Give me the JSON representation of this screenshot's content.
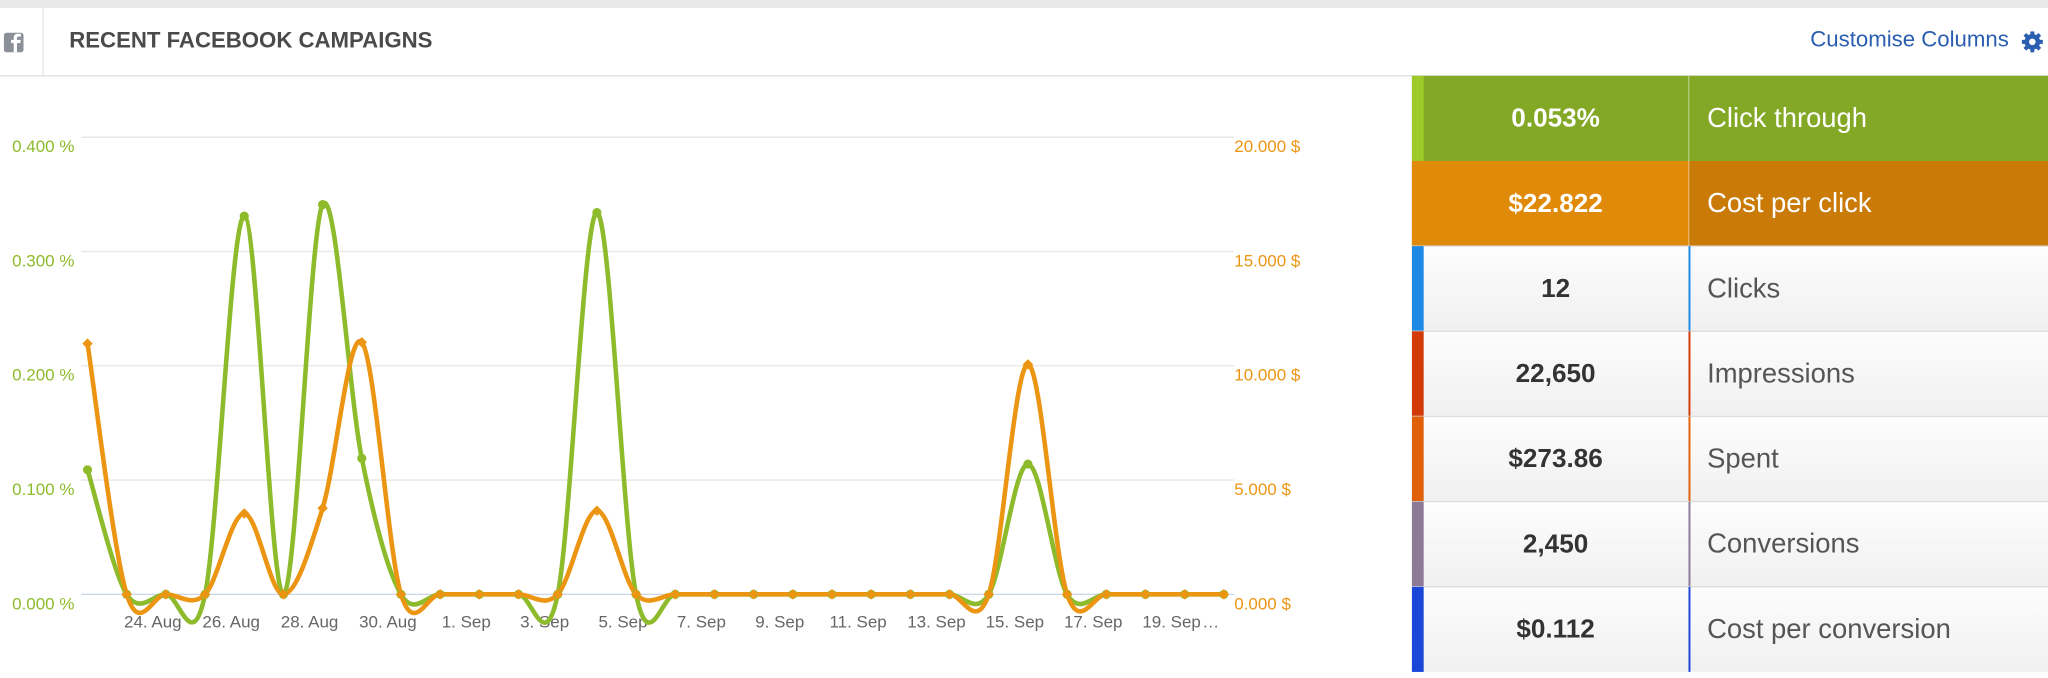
{
  "header": {
    "title": "RECENT FACEBOOK CAMPAIGNS",
    "action": "Customise Columns"
  },
  "chart_data": {
    "type": "line",
    "categories": [
      null,
      null,
      "24. Aug",
      null,
      "26. Aug",
      null,
      "28. Aug",
      null,
      "30. Aug",
      null,
      "1. Sep",
      null,
      "3. Sep",
      null,
      "5. Sep",
      null,
      "7. Sep",
      null,
      "9. Sep",
      null,
      "11. Sep",
      null,
      "13. Sep",
      null,
      "15. Sep",
      null,
      "17. Sep",
      null,
      "19. Sep",
      "…"
    ],
    "series": [
      {
        "name": "Click through",
        "color": "#8dbb2b",
        "values": [
          0.109,
          0,
          0,
          0,
          0.331,
          0,
          0.341,
          0.119,
          0,
          0,
          0,
          0,
          0,
          0.334,
          0,
          0,
          0,
          0,
          0,
          0,
          0,
          0,
          0,
          0,
          0.114,
          0,
          0,
          0,
          0,
          0
        ]
      },
      {
        "name": "Cost per click",
        "color": "#ec9513",
        "axis": "y2",
        "values": [
          10.97,
          0,
          0,
          0,
          3.54,
          0,
          3.77,
          11.03,
          0,
          0,
          0,
          0,
          0,
          3.66,
          0,
          0,
          0,
          0,
          0,
          0,
          0,
          0,
          0,
          0,
          10.06,
          0,
          0,
          0,
          0,
          0
        ]
      }
    ],
    "ylim": [
      0,
      0.4
    ],
    "yticks": [
      {
        "value": 0,
        "label": "0.000 %"
      },
      {
        "value": 0.1,
        "label": "0.100 %"
      },
      {
        "value": 0.2,
        "label": "0.200 %"
      },
      {
        "value": 0.3,
        "label": "0.300 %"
      },
      {
        "value": 0.4,
        "label": "0.400 %"
      }
    ],
    "y2lim": [
      0,
      20
    ],
    "y2ticks": [
      {
        "value": 0,
        "label": "0.000 $"
      },
      {
        "value": 5,
        "label": "5.000 $"
      },
      {
        "value": 10,
        "label": "10.000 $"
      },
      {
        "value": 15,
        "label": "15.000 $"
      },
      {
        "value": 20,
        "label": "20.000 $"
      }
    ],
    "grid": true
  },
  "metrics": [
    {
      "value": "0.053%",
      "label": "Click through",
      "color": "#82a826",
      "accent": "#9ecb2a",
      "highlight": true
    },
    {
      "value": "$22.822",
      "label": "Cost per click",
      "color": "#e08a0a",
      "accent": "#c97a07",
      "highlight": true
    },
    {
      "value": "12",
      "label": "Clicks",
      "color": "#1e88e5"
    },
    {
      "value": "22,650",
      "label": "Impressions",
      "color": "#d33a0a"
    },
    {
      "value": "$273.86",
      "label": "Spent",
      "color": "#e0600a"
    },
    {
      "value": "2,450",
      "label": "Conversions",
      "color": "#8c7a97"
    },
    {
      "value": "$0.112",
      "label": "Cost per conversion",
      "color": "#1a47d8"
    }
  ]
}
